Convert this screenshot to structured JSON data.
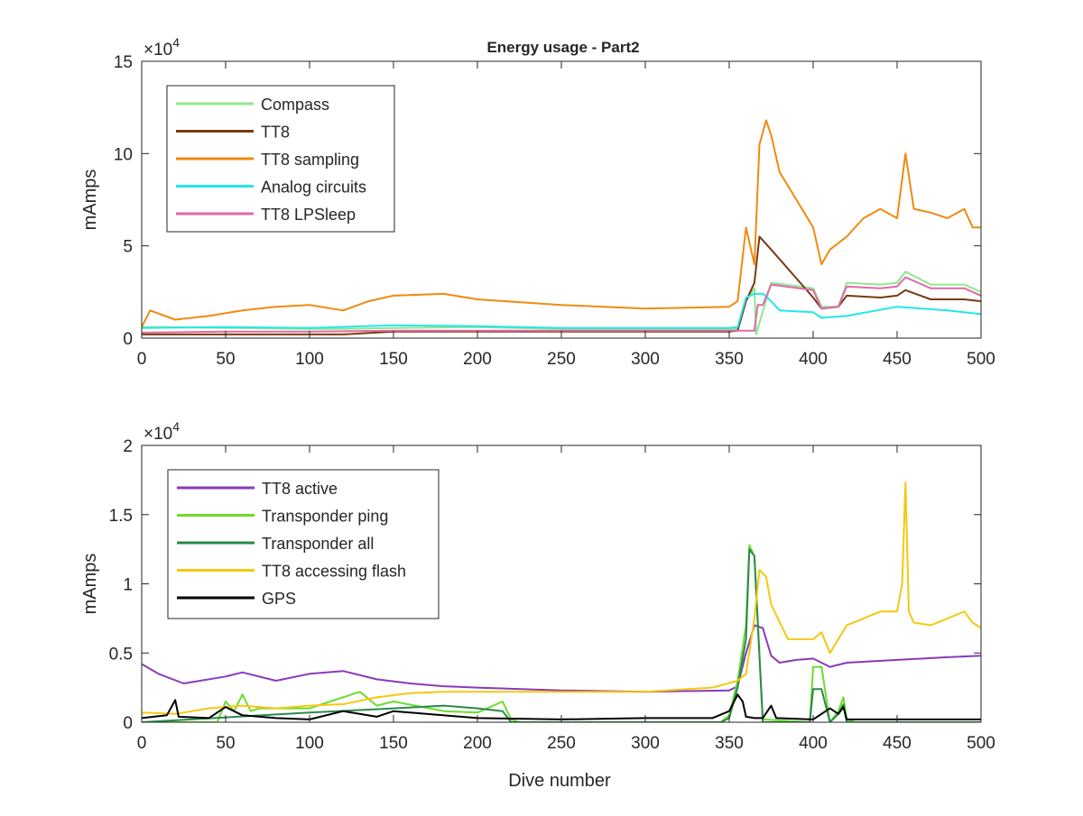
{
  "figure": {
    "title": "Energy usage - Part2"
  },
  "chart_data": [
    {
      "type": "line",
      "title": "Energy usage - Part2",
      "xlabel": "",
      "ylabel": "mAmps",
      "y_exponent": "×10",
      "y_exponent_power": "4",
      "xlim": [
        0,
        500
      ],
      "ylim": [
        0,
        150000
      ],
      "x_ticks": [
        "0",
        "50",
        "100",
        "150",
        "200",
        "250",
        "300",
        "350",
        "400",
        "450",
        "500"
      ],
      "y_ticks": [
        "0",
        "5",
        "10",
        "15"
      ],
      "y_tick_values": [
        0,
        50000,
        100000,
        150000
      ],
      "grid": false,
      "legend_position": "top-left",
      "series": [
        {
          "name": "Compass",
          "color": "#8fe68f",
          "x": [
            0,
            10,
            50,
            100,
            120,
            150,
            200,
            250,
            300,
            350,
            355,
            360,
            365,
            366,
            375,
            400,
            405,
            415,
            420,
            440,
            450,
            455,
            470,
            490,
            500
          ],
          "y": [
            6000,
            6000,
            5500,
            5000,
            5000,
            5500,
            6000,
            5000,
            5000,
            5000,
            5000,
            20000,
            27000,
            2000,
            30000,
            27000,
            17000,
            17000,
            30000,
            29000,
            30000,
            36000,
            29000,
            29000,
            25000
          ]
        },
        {
          "name": "TT8",
          "color": "#7a3a10",
          "x": [
            0,
            10,
            50,
            100,
            120,
            150,
            200,
            250,
            300,
            350,
            355,
            360,
            365,
            368,
            375,
            400,
            405,
            415,
            420,
            440,
            450,
            455,
            470,
            490,
            500
          ],
          "y": [
            2000,
            2000,
            2000,
            2000,
            2000,
            3500,
            3500,
            3500,
            3500,
            3500,
            4000,
            20000,
            30000,
            55000,
            48000,
            22000,
            16000,
            17000,
            23000,
            22000,
            23000,
            26000,
            21000,
            21000,
            20000
          ]
        },
        {
          "name": "TT8 sampling",
          "color": "#f08a10",
          "x": [
            0,
            5,
            20,
            40,
            60,
            80,
            100,
            120,
            135,
            150,
            180,
            200,
            250,
            300,
            350,
            355,
            360,
            365,
            368,
            372,
            375,
            380,
            390,
            400,
            405,
            410,
            420,
            430,
            440,
            450,
            455,
            460,
            470,
            480,
            490,
            495,
            500
          ],
          "y": [
            6000,
            15000,
            10000,
            12000,
            15000,
            17000,
            18000,
            15000,
            20000,
            23000,
            24000,
            21000,
            18000,
            16000,
            17000,
            20000,
            60000,
            40000,
            105000,
            118000,
            110000,
            90000,
            75000,
            60000,
            40000,
            48000,
            55000,
            65000,
            70000,
            65000,
            100000,
            70000,
            68000,
            65000,
            70000,
            60000,
            60000
          ]
        },
        {
          "name": "Analog circuits",
          "color": "#22e8e8",
          "x": [
            0,
            50,
            100,
            150,
            200,
            250,
            300,
            350,
            355,
            360,
            365,
            370,
            375,
            380,
            400,
            405,
            420,
            450,
            480,
            500
          ],
          "y": [
            5500,
            6000,
            5500,
            7000,
            6500,
            5500,
            5500,
            5500,
            6000,
            22000,
            24000,
            24000,
            20000,
            15000,
            14000,
            11000,
            12000,
            17000,
            15000,
            13000
          ]
        },
        {
          "name": "TT8 LPSleep",
          "color": "#e06aa8",
          "x": [
            0,
            50,
            100,
            150,
            200,
            250,
            300,
            350,
            360,
            365,
            367,
            370,
            375,
            400,
            405,
            415,
            420,
            440,
            450,
            455,
            470,
            490,
            500
          ],
          "y": [
            3000,
            3500,
            3500,
            4000,
            4000,
            4000,
            4000,
            4000,
            4000,
            4000,
            18000,
            18000,
            29000,
            26000,
            16000,
            17000,
            28000,
            27000,
            28000,
            33000,
            27000,
            27000,
            23000
          ]
        }
      ]
    },
    {
      "type": "line",
      "title": "",
      "xlabel": "Dive number",
      "ylabel": "mAmps",
      "y_exponent": "×10",
      "y_exponent_power": "4",
      "xlim": [
        0,
        500
      ],
      "ylim": [
        0,
        20000
      ],
      "x_ticks": [
        "0",
        "50",
        "100",
        "150",
        "200",
        "250",
        "300",
        "350",
        "400",
        "450",
        "500"
      ],
      "y_ticks": [
        "0",
        "0.5",
        "1",
        "1.5",
        "2"
      ],
      "y_tick_values": [
        0,
        5000,
        10000,
        15000,
        20000
      ],
      "grid": false,
      "legend_position": "top-left",
      "series": [
        {
          "name": "TT8 active",
          "color": "#8a3ab8",
          "x": [
            0,
            10,
            25,
            50,
            60,
            80,
            100,
            120,
            140,
            160,
            180,
            200,
            250,
            300,
            350,
            355,
            360,
            365,
            370,
            375,
            380,
            390,
            400,
            410,
            420,
            450,
            480,
            500
          ],
          "y": [
            4200,
            3500,
            2800,
            3300,
            3600,
            3000,
            3500,
            3700,
            3100,
            2800,
            2600,
            2500,
            2300,
            2200,
            2300,
            2600,
            5000,
            7000,
            6800,
            4800,
            4300,
            4500,
            4600,
            4000,
            4300,
            4500,
            4700,
            4800
          ]
        },
        {
          "name": "Transponder ping",
          "color": "#6cdc2c",
          "x": [
            0,
            45,
            50,
            55,
            60,
            65,
            70,
            100,
            130,
            140,
            150,
            180,
            200,
            215,
            220,
            225,
            250,
            300,
            345,
            350,
            355,
            360,
            362,
            365,
            370,
            398,
            400,
            405,
            410,
            415,
            418,
            420,
            425,
            500
          ],
          "y": [
            0,
            0,
            1500,
            800,
            2000,
            800,
            1000,
            1000,
            2200,
            1200,
            1500,
            800,
            700,
            1500,
            200,
            0,
            0,
            0,
            0,
            500,
            3000,
            7000,
            12800,
            12000,
            200,
            0,
            4000,
            4000,
            0,
            800,
            1800,
            200,
            0,
            0
          ]
        },
        {
          "name": "Transponder all",
          "color": "#2a8a4a",
          "x": [
            0,
            100,
            150,
            180,
            200,
            215,
            220,
            345,
            350,
            355,
            360,
            362,
            365,
            370,
            398,
            400,
            405,
            410,
            415,
            418,
            420,
            425,
            500
          ],
          "y": [
            0,
            700,
            1000,
            1200,
            1000,
            800,
            0,
            0,
            300,
            2500,
            6000,
            12500,
            12000,
            0,
            0,
            2400,
            2400,
            0,
            600,
            1300,
            0,
            0,
            0
          ]
        },
        {
          "name": "TT8 accessing flash",
          "color": "#f5c810",
          "x": [
            0,
            20,
            40,
            60,
            80,
            100,
            120,
            140,
            160,
            180,
            200,
            250,
            300,
            340,
            355,
            360,
            365,
            368,
            372,
            375,
            385,
            400,
            405,
            410,
            420,
            430,
            440,
            450,
            453,
            455,
            457,
            460,
            470,
            480,
            490,
            495,
            500
          ],
          "y": [
            700,
            600,
            1000,
            1200,
            1000,
            1200,
            1300,
            1800,
            2100,
            2200,
            2200,
            2200,
            2200,
            2500,
            3000,
            3500,
            7500,
            11000,
            10500,
            8500,
            6000,
            6000,
            6500,
            5000,
            7000,
            7500,
            8000,
            8000,
            10000,
            17300,
            8000,
            7200,
            7000,
            7500,
            8000,
            7200,
            6800
          ]
        },
        {
          "name": "GPS",
          "color": "#000000",
          "x": [
            0,
            15,
            20,
            22,
            40,
            50,
            60,
            80,
            100,
            120,
            140,
            150,
            200,
            250,
            300,
            340,
            350,
            355,
            358,
            360,
            365,
            370,
            375,
            378,
            400,
            410,
            415,
            418,
            420,
            425,
            500
          ],
          "y": [
            300,
            500,
            1600,
            400,
            300,
            1100,
            500,
            300,
            200,
            800,
            400,
            800,
            300,
            200,
            300,
            300,
            800,
            2000,
            1500,
            400,
            300,
            300,
            1200,
            300,
            200,
            1000,
            600,
            1100,
            200,
            200,
            200
          ]
        }
      ]
    }
  ]
}
